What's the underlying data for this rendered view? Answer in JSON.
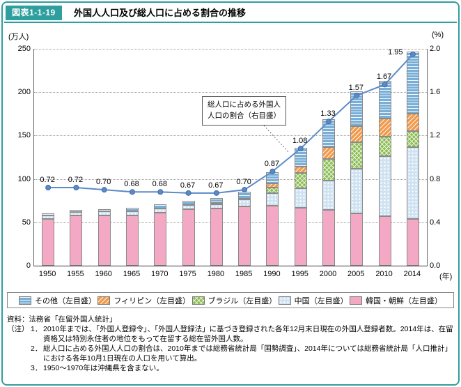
{
  "figure": {
    "tag": "図表1-1-19",
    "title": "外国人人口及び総人口に占める割合の推移"
  },
  "chart_data": {
    "type": "bar",
    "subtype": "stacked-bar-with-line",
    "title": "外国人人口及び総人口に占める割合の推移",
    "unit_left": "(万人)",
    "unit_right": "(%)",
    "unit_x": "(年)",
    "categories": [
      "1950",
      "1955",
      "1960",
      "1965",
      "1970",
      "1975",
      "1980",
      "1985",
      "1990",
      "1995",
      "2000",
      "2005",
      "2010",
      "2014"
    ],
    "left_axis": {
      "label": "万人",
      "min": 0,
      "max": 250,
      "ticks": [
        0,
        50,
        100,
        150,
        200,
        250
      ]
    },
    "right_axis": {
      "label": "%",
      "min": 0,
      "max": 2.0,
      "ticks": [
        "0.0",
        "0.4",
        "0.8",
        "1.2",
        "1.6",
        "2.0"
      ]
    },
    "grid": true,
    "legend_position": "bottom",
    "series": [
      {
        "key": "other",
        "label": "その他（左目盛）",
        "color": "#79afd7",
        "pattern": "horizontal-stripes",
        "values": [
          2,
          2,
          2,
          4,
          5,
          5,
          6,
          8,
          13,
          22,
          32,
          40,
          43,
          72
        ]
      },
      {
        "key": "philippines",
        "label": "フィリピン（左目盛）",
        "color": "#f09a4b",
        "pattern": "diagonal-stripes",
        "values": [
          0,
          0,
          0,
          0,
          0,
          0,
          1,
          1,
          5,
          7,
          14,
          19,
          21,
          20
        ]
      },
      {
        "key": "brazil",
        "label": "ブラジル（左目盛）",
        "color": "#8cbd54",
        "pattern": "cross-hatch",
        "values": [
          0,
          0,
          0,
          0,
          0,
          0,
          0,
          0,
          6,
          18,
          25,
          30,
          23,
          18
        ]
      },
      {
        "key": "china",
        "label": "中国（左目盛）",
        "color": "#cfe2f2",
        "pattern": "dots",
        "values": [
          4,
          4,
          5,
          5,
          5,
          5,
          5,
          8,
          15,
          22,
          34,
          52,
          69,
          83
        ]
      },
      {
        "key": "korea",
        "label": "韓国・朝鮮（左目盛）",
        "color": "#f3a8c4",
        "pattern": "solid",
        "values": [
          54,
          58,
          58,
          58,
          61,
          65,
          66,
          68,
          69,
          67,
          64,
          60,
          57,
          54
        ]
      }
    ],
    "percent_line": {
      "label": "総人口に占める外国人人口の割合（右目盛）",
      "color": "#5b8ac6",
      "axis": "right",
      "values": [
        0.72,
        0.72,
        0.7,
        0.68,
        0.68,
        0.67,
        0.67,
        0.7,
        0.87,
        1.08,
        1.33,
        1.57,
        1.67,
        1.95
      ],
      "labels": [
        "0.72",
        "0.72",
        "0.70",
        "0.68",
        "0.68",
        "0.67",
        "0.67",
        "0.70",
        "0.87",
        "1.08",
        "1.33",
        "1.57",
        "1.67",
        "1.95"
      ]
    }
  },
  "annotation": {
    "line1": "総人口に占める外国人",
    "line2": "人口の割合（右目盛）"
  },
  "notes": {
    "source": "資料：法務省「在留外国人統計」",
    "items": [
      {
        "label": "（注）",
        "num": "1．",
        "text": "2010年までは、「外国人登録令」、「外国人登録法」に基づき登録された各年12月末日現在の外国人登録者数。2014年は、在留資格又は特別永住者の地位をもって在留する総在留外国人数。"
      },
      {
        "label": "",
        "num": "2．",
        "text": "総人口に占める外国人人口の割合は、2010年までは総務省統計局「国勢調査」、2014年については総務省統計局「人口推計」における各年10月1日現在の人口を用いて算出。"
      },
      {
        "label": "",
        "num": "3．",
        "text": "1950〜1970年は沖縄県を含まない。"
      }
    ]
  },
  "colors": {
    "accent_teal": "#2f9e9e",
    "line_blue": "#5b8ac6"
  }
}
